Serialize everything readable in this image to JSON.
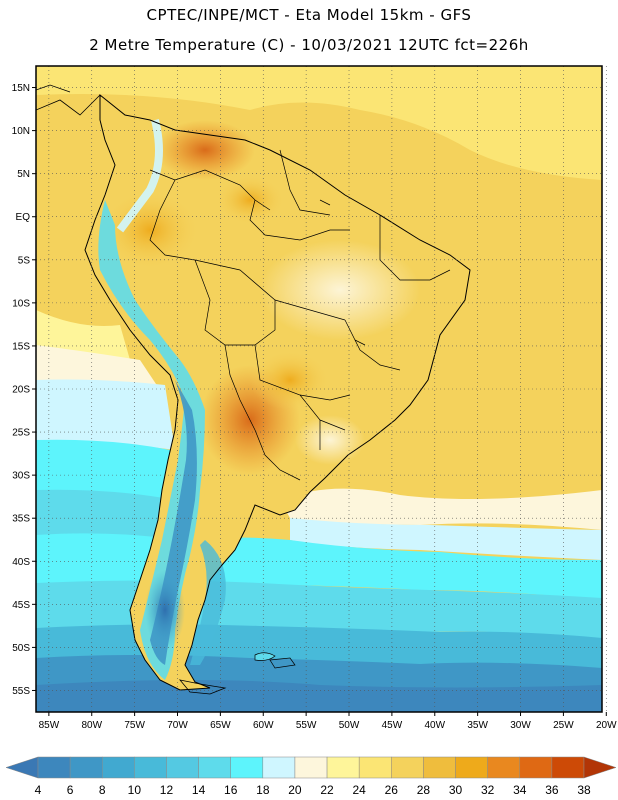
{
  "header": {
    "title_line1": "CPTEC/INPE/MCT -  Eta Model 15km - GFS",
    "title_line2": "2 Metre Temperature (C) - 10/03/2021 12UTC fct=226h"
  },
  "map": {
    "lat_ticks": [
      "15N",
      "10N",
      "5N",
      "EQ",
      "5S",
      "10S",
      "15S",
      "20S",
      "25S",
      "30S",
      "35S",
      "40S",
      "45S",
      "50S",
      "55S"
    ],
    "lon_ticks": [
      "85W",
      "80W",
      "75W",
      "70W",
      "65W",
      "60W",
      "55W",
      "50W",
      "45W",
      "40W",
      "35W",
      "30W",
      "25W",
      "20W"
    ],
    "lat_range": [
      -57.5,
      17.5
    ],
    "lon_range": [
      -86.5,
      -20.5
    ],
    "gridlines": true,
    "gridline_style": "dotted",
    "land_outline_color": "#000000"
  },
  "colorbar": {
    "labels": [
      "4",
      "6",
      "8",
      "10",
      "12",
      "14",
      "16",
      "18",
      "20",
      "22",
      "24",
      "26",
      "28",
      "30",
      "32",
      "34",
      "36",
      "38"
    ],
    "colors": [
      "#3a78b4",
      "#3d87bd",
      "#3f97c6",
      "#41a9d0",
      "#48bad9",
      "#54c9e2",
      "#5edbeb",
      "#5df4fc",
      "#cff6ff",
      "#fdf6dc",
      "#fef59a",
      "#fbe574",
      "#f4d25c",
      "#efbd3d",
      "#eeaa1b",
      "#e9881f",
      "#df6914",
      "#cd4a06",
      "#b23506"
    ]
  }
}
